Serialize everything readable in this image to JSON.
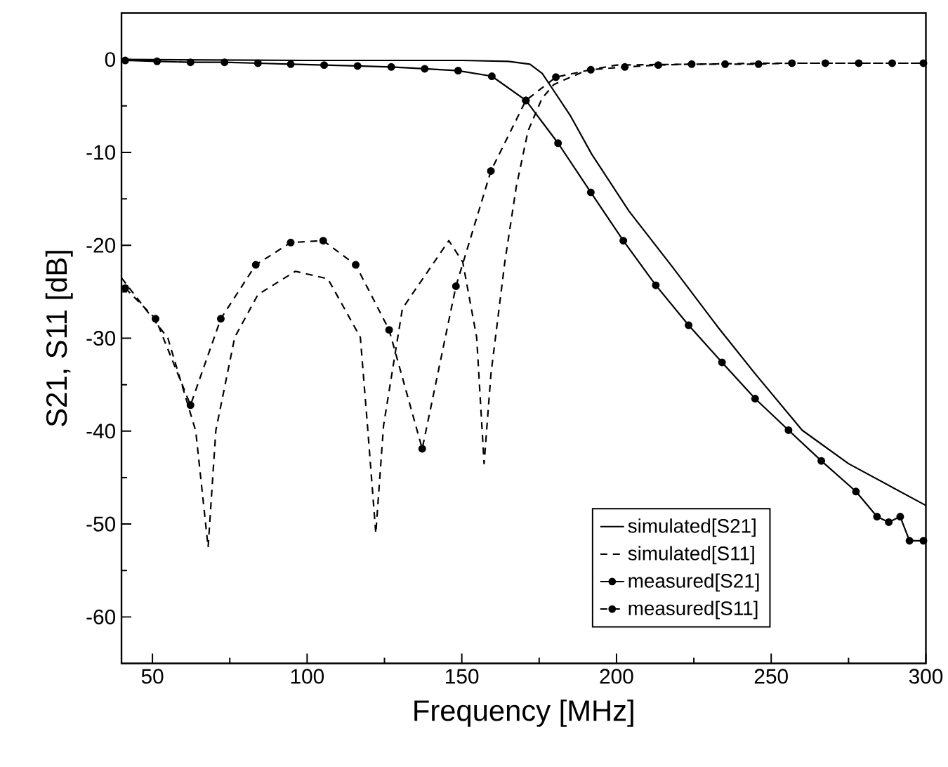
{
  "chart_data": {
    "type": "line",
    "xlabel": "Frequency [MHz]",
    "ylabel": "S21, S11 [dB]",
    "xlim": [
      40,
      300
    ],
    "ylim": [
      -65,
      5
    ],
    "xticks": [
      50,
      {
        "value": 75,
        "label": null
      },
      100,
      {
        "value": 125,
        "label": null
      },
      150,
      {
        "value": 175,
        "label": null
      },
      200,
      {
        "value": 225,
        "label": null
      },
      250,
      {
        "value": 275,
        "label": null
      },
      300
    ],
    "yticks": [
      -60,
      {
        "value": -55,
        "label": null
      },
      -50,
      {
        "value": -45,
        "label": null
      },
      -40,
      {
        "value": -35,
        "label": null
      },
      -30,
      {
        "value": -25,
        "label": null
      },
      -20,
      {
        "value": -15,
        "label": null
      },
      -10,
      {
        "value": -5,
        "label": null
      },
      0
    ],
    "grid": false,
    "legend": "bottom right",
    "series": [
      {
        "name": "simulated[S21]",
        "color": "#000000",
        "line_style": "solid",
        "marker": "none",
        "x": [
          40,
          100,
          150,
          165,
          172,
          176,
          180,
          185,
          192,
          204,
          218,
          233,
          245,
          260,
          275,
          300
        ],
        "values": [
          0,
          -0.1,
          -0.1,
          -0.2,
          -0.5,
          -1.5,
          -3.5,
          -6,
          -10.2,
          -16.3,
          -22.3,
          -28.9,
          -33.9,
          -39.9,
          -43.5,
          -48
        ]
      },
      {
        "name": "simulated[S11]",
        "color": "#000000",
        "line_style": "dashed",
        "marker": "none",
        "x": [
          40,
          55,
          64,
          68,
          70.5,
          76.6,
          84.1,
          96.2,
          106.7,
          117.2,
          119.5,
          122.2,
          124.7,
          130.8,
          145.8,
          150.3,
          154.8,
          157.2,
          159.4,
          163.9,
          167.6,
          171.4,
          175.9,
          179.7,
          190,
          200,
          250,
          300
        ],
        "values": [
          -23.5,
          -30,
          -40,
          -52.5,
          -39.9,
          -29.9,
          -25.3,
          -22.8,
          -23.6,
          -29.9,
          -39.4,
          -51,
          -39.4,
          -26.8,
          -19.5,
          -21.8,
          -29.9,
          -43.5,
          -33.9,
          -21.8,
          -13.7,
          -7.7,
          -4.2,
          -2.7,
          -1.2,
          -0.6,
          -0.4,
          -0.4
        ]
      },
      {
        "name": "measured[S21]",
        "color": "#000000",
        "line_style": "solid",
        "marker": "circle",
        "x": [
          41.2,
          51.5,
          62.3,
          73.3,
          84.1,
          94.7,
          105.5,
          116.3,
          127.2,
          138,
          148.8,
          159.7,
          170.7,
          181.1,
          191.7,
          202.2,
          212.7,
          223.3,
          234.1,
          244.8,
          255.6,
          266.2,
          277.4,
          284.2,
          288,
          291.7,
          294.7,
          299.2
        ],
        "values": [
          -0.1,
          -0.2,
          -0.3,
          -0.3,
          -0.4,
          -0.5,
          -0.6,
          -0.7,
          -0.8,
          -1.0,
          -1.2,
          -1.8,
          -4.4,
          -9,
          -14.3,
          -19.5,
          -24.3,
          -28.6,
          -32.6,
          -36.5,
          -39.9,
          -43.2,
          -46.5,
          -49.2,
          -49.8,
          -49.2,
          -51.8,
          -51.8
        ]
      },
      {
        "name": "measured[S11]",
        "color": "#000000",
        "line_style": "dashed",
        "marker": "circle",
        "x": [
          41.2,
          51,
          62.3,
          72.1,
          83.4,
          94.7,
          105.2,
          115.7,
          126.5,
          137.2,
          148.1,
          159.4,
          170.7,
          180.4,
          191.7,
          202.7,
          213.5,
          224.3,
          235.1,
          245.9,
          256.7,
          267.5,
          278.3,
          289.1,
          299.2
        ],
        "values": [
          -24.6,
          -27.9,
          -37.2,
          -27.9,
          -22.1,
          -19.7,
          -19.5,
          -22.1,
          -29.1,
          -41.9,
          -24.4,
          -12,
          -4.4,
          -1.9,
          -1.1,
          -0.8,
          -0.6,
          -0.5,
          -0.5,
          -0.5,
          -0.4,
          -0.4,
          -0.4,
          -0.4,
          -0.4
        ]
      }
    ]
  }
}
